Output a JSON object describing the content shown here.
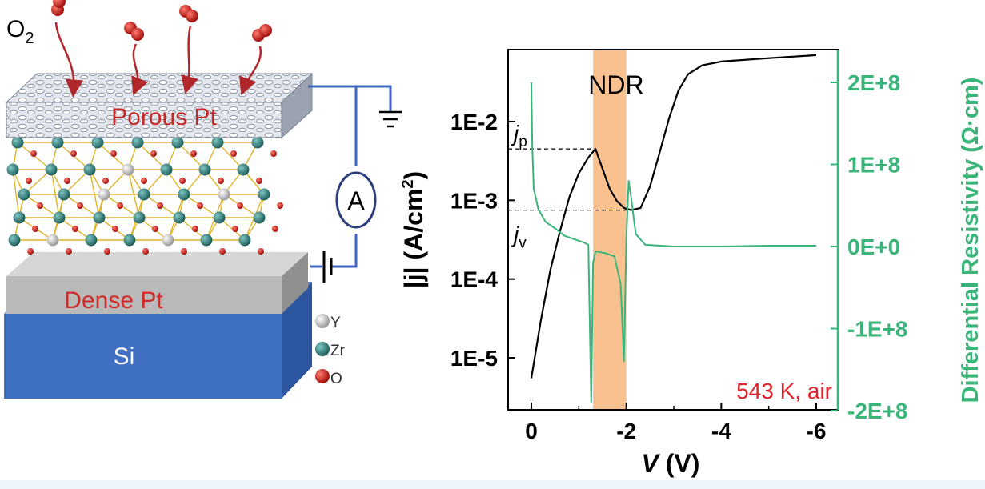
{
  "diagram": {
    "gas_label": "O",
    "gas_subscript": "2",
    "top_electrode_label": "Porous Pt",
    "bottom_electrode_label": "Dense Pt",
    "substrate_label": "Si",
    "ammeter_label": "A",
    "legend": [
      {
        "symbol": "Y",
        "color": "#c8c8c8"
      },
      {
        "symbol": "Zr",
        "color": "#2e7f7c"
      },
      {
        "symbol": "O",
        "color": "#d0201c"
      }
    ],
    "colors": {
      "porous_pt": "#c9d1dc",
      "dense_pt": "#b9b9b9",
      "silicon": "#3e6fc0",
      "wire": "#3f67c2",
      "arrow": "#b1282c",
      "bond": "#e0b42a"
    }
  },
  "chart_data": {
    "type": "line",
    "xlabel": "V",
    "xlabel_unit": "(V)",
    "ylabel_left": "|j| (A/cm",
    "ylabel_left_sup": "2",
    "ylabel_left_close": ")",
    "ylabel_right": "Differential Resistivity (Ω·cm)",
    "x_ticks": [
      "0",
      "-2",
      "-4",
      "-6"
    ],
    "x_tick_values": [
      0,
      -2,
      -4,
      -6
    ],
    "xlim": [
      0.5,
      -6.5
    ],
    "y_left_scale": "log",
    "y_left_ticks": [
      "1E-2",
      "1E-3",
      "1E-4",
      "1E-5"
    ],
    "y_left_tick_values": [
      0.01,
      0.001,
      0.0001,
      1e-05
    ],
    "y_right_ticks": [
      "2E+8",
      "1E+8",
      "0E+0",
      "-1E+8",
      "-2E+8"
    ],
    "y_right_tick_values": [
      200000000,
      100000000,
      0,
      -100000000,
      -200000000
    ],
    "y_right_lim": [
      -220000000,
      250000000
    ],
    "ndr_region": {
      "label": "NDR",
      "x": [
        -1.3,
        -2.0
      ],
      "color": "#f9c18f"
    },
    "annotations": [
      {
        "main": "j",
        "sub": "p",
        "value": 0.0045
      },
      {
        "main": "j",
        "sub": "v",
        "value": 0.00075
      }
    ],
    "condition_label": "543 K, air",
    "series": [
      {
        "axis": "left",
        "color": "#000000",
        "points": [
          [
            0,
            5.5e-06
          ],
          [
            -0.2,
            3e-05
          ],
          [
            -0.4,
            0.00013
          ],
          [
            -0.6,
            0.0004
          ],
          [
            -0.8,
            0.0011
          ],
          [
            -1.0,
            0.0022
          ],
          [
            -1.2,
            0.0035
          ],
          [
            -1.35,
            0.0045
          ],
          [
            -1.5,
            0.0025
          ],
          [
            -1.65,
            0.0014
          ],
          [
            -1.8,
            0.00098
          ],
          [
            -1.95,
            0.0008
          ],
          [
            -2.1,
            0.00075
          ],
          [
            -2.3,
            0.0008
          ],
          [
            -2.5,
            0.0015
          ],
          [
            -2.7,
            0.004
          ],
          [
            -2.9,
            0.011
          ],
          [
            -3.1,
            0.025
          ],
          [
            -3.3,
            0.04
          ],
          [
            -3.6,
            0.052
          ],
          [
            -4.0,
            0.058
          ],
          [
            -5.0,
            0.064
          ],
          [
            -6.0,
            0.07
          ]
        ]
      },
      {
        "axis": "right",
        "color": "#3ab57a",
        "points": [
          [
            0,
            200000000
          ],
          [
            -0.02,
            120000000
          ],
          [
            -0.05,
            70000000
          ],
          [
            -0.15,
            45000000
          ],
          [
            -0.3,
            30000000
          ],
          [
            -0.5,
            22000000
          ],
          [
            -0.7,
            13000000
          ],
          [
            -0.9,
            9000000
          ],
          [
            -1.1,
            5000000
          ],
          [
            -1.2,
            2000000
          ],
          [
            -1.26,
            -190000000
          ],
          [
            -1.3,
            -20000000
          ],
          [
            -1.35,
            -6000000
          ],
          [
            -1.55,
            -8000000
          ],
          [
            -1.75,
            -12000000
          ],
          [
            -1.88,
            -45000000
          ],
          [
            -1.95,
            -140000000
          ],
          [
            -2.0,
            10000000
          ],
          [
            -2.05,
            80000000
          ],
          [
            -2.1,
            60000000
          ],
          [
            -2.2,
            15000000
          ],
          [
            -2.4,
            2000000
          ],
          [
            -3.0,
            0
          ],
          [
            -4.0,
            0
          ],
          [
            -5.0,
            1000000
          ],
          [
            -6.0,
            1000000
          ]
        ]
      }
    ]
  }
}
